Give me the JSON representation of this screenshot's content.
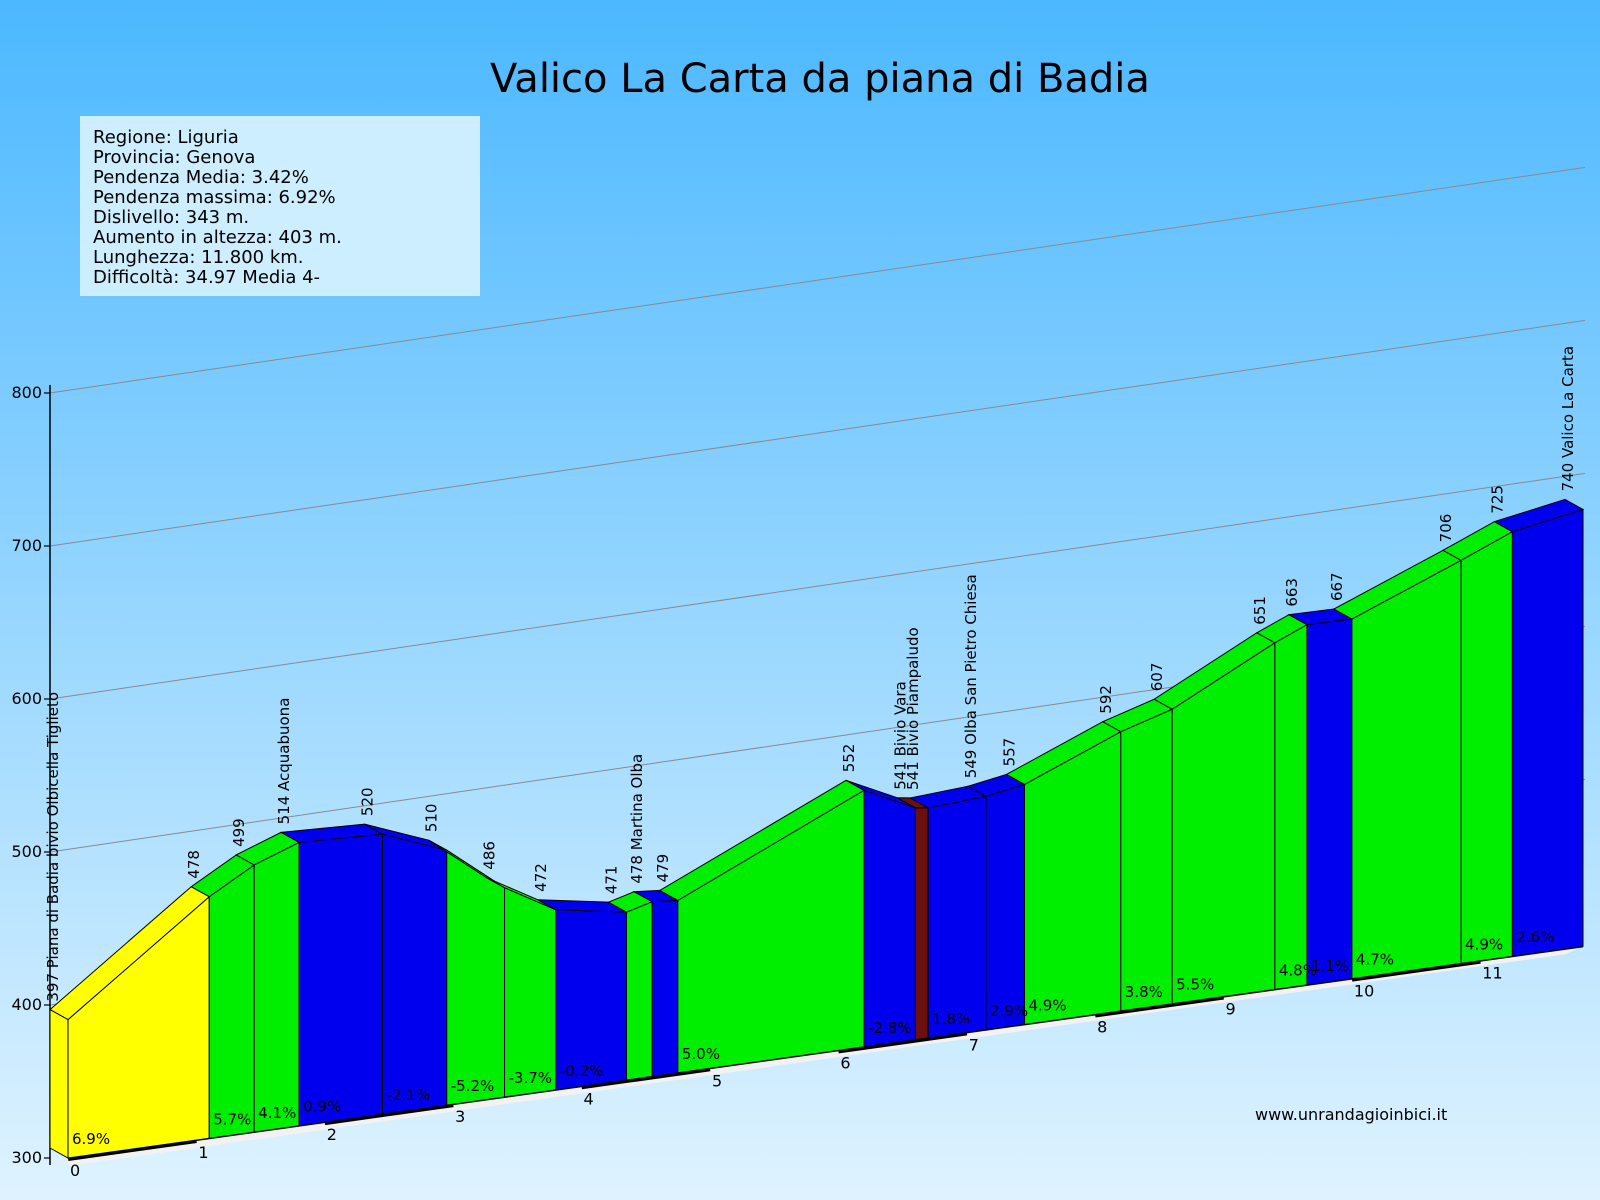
{
  "title": "Valico La Carta da piana di Badia",
  "info": [
    "Regione: Liguria",
    "Provincia: Genova",
    "Pendenza Media: 3.42%",
    "Pendenza massima: 6.92%",
    "Dislivello:  343 m.",
    "Aumento in altezza:  403 m.",
    "Lunghezza:  11.800 km.",
    "Difficoltà: 34.97 Media 4-"
  ],
  "website": "www.unrandagioinbici.it",
  "colors": {
    "sky_top": "#4cb8ff",
    "sky_bottom": "#dff3ff",
    "steep": "#ffff00",
    "climb": "#00ee00",
    "descent_flat": "#0000ee",
    "marker": "#6b0f0f"
  },
  "chart_data": {
    "type": "area",
    "chart_style": "3d elevation profile",
    "xlabel": "",
    "ylabel": "",
    "ylim": [
      300,
      800
    ],
    "y_ticks": [
      300,
      400,
      500,
      600,
      700,
      800
    ],
    "x_ticks": [
      0,
      1,
      2,
      3,
      4,
      5,
      6,
      7,
      8,
      9,
      10,
      11
    ],
    "grid": true,
    "points": [
      {
        "km": 0.0,
        "elev": 397,
        "label": "397 Piana di Badia bivio Olbicella Tiglieto"
      },
      {
        "km": 1.1,
        "elev": 478,
        "label": "478"
      },
      {
        "km": 1.45,
        "elev": 499,
        "label": "499"
      },
      {
        "km": 1.8,
        "elev": 514,
        "label": "514 Acquabuona"
      },
      {
        "km": 2.45,
        "elev": 520,
        "label": "520"
      },
      {
        "km": 2.95,
        "elev": 510,
        "label": "510"
      },
      {
        "km": 3.4,
        "elev": 486,
        "label": "486"
      },
      {
        "km": 3.8,
        "elev": 472,
        "label": "472"
      },
      {
        "km": 4.35,
        "elev": 471,
        "label": "471"
      },
      {
        "km": 4.55,
        "elev": 478,
        "label": "478 Martina Olba"
      },
      {
        "km": 4.75,
        "elev": 479,
        "label": "479"
      },
      {
        "km": 6.2,
        "elev": 552,
        "label": "552"
      },
      {
        "km": 6.6,
        "elev": 541,
        "label": "541 Bivio Vara"
      },
      {
        "km": 6.7,
        "elev": 541,
        "label": "541 Bivio Piampaludo"
      },
      {
        "km": 7.15,
        "elev": 549,
        "label": "549 Olba San Pietro Chiesa"
      },
      {
        "km": 7.45,
        "elev": 557,
        "label": "557"
      },
      {
        "km": 8.2,
        "elev": 592,
        "label": "592"
      },
      {
        "km": 8.6,
        "elev": 607,
        "label": "607"
      },
      {
        "km": 9.4,
        "elev": 651,
        "label": "651"
      },
      {
        "km": 9.65,
        "elev": 663,
        "label": "663"
      },
      {
        "km": 10.0,
        "elev": 667,
        "label": "667"
      },
      {
        "km": 10.85,
        "elev": 706,
        "label": "706"
      },
      {
        "km": 11.25,
        "elev": 725,
        "label": "725"
      },
      {
        "km": 11.8,
        "elev": 740,
        "label": "740 Valico La Carta"
      }
    ],
    "segments": [
      {
        "gradient": "6.9%",
        "color": "steep"
      },
      {
        "gradient": "5.7%",
        "color": "climb"
      },
      {
        "gradient": "4.1%",
        "color": "climb"
      },
      {
        "gradient": "0.9%",
        "color": "descent_flat"
      },
      {
        "gradient": "-2.1%",
        "color": "descent_flat"
      },
      {
        "gradient": "-5.2%",
        "color": "climb"
      },
      {
        "gradient": "-3.7%",
        "color": "climb"
      },
      {
        "gradient": "-0.2%",
        "color": "descent_flat"
      },
      {
        "gradient": "",
        "color": "climb"
      },
      {
        "gradient": "",
        "color": "descent_flat"
      },
      {
        "gradient": "5.0%",
        "color": "climb"
      },
      {
        "gradient": "-2.8%",
        "color": "descent_flat"
      },
      {
        "gradient": "",
        "color": "marker"
      },
      {
        "gradient": "1.8%",
        "color": "descent_flat"
      },
      {
        "gradient": "2.9%",
        "color": "descent_flat"
      },
      {
        "gradient": "4.9%",
        "color": "climb"
      },
      {
        "gradient": "3.8%",
        "color": "climb"
      },
      {
        "gradient": "5.5%",
        "color": "climb"
      },
      {
        "gradient": "4.8%",
        "color": "climb"
      },
      {
        "gradient": "1.1%",
        "color": "descent_flat"
      },
      {
        "gradient": "4.7%",
        "color": "climb"
      },
      {
        "gradient": "4.9%",
        "color": "climb"
      },
      {
        "gradient": "2.6%",
        "color": "descent_flat"
      }
    ]
  }
}
